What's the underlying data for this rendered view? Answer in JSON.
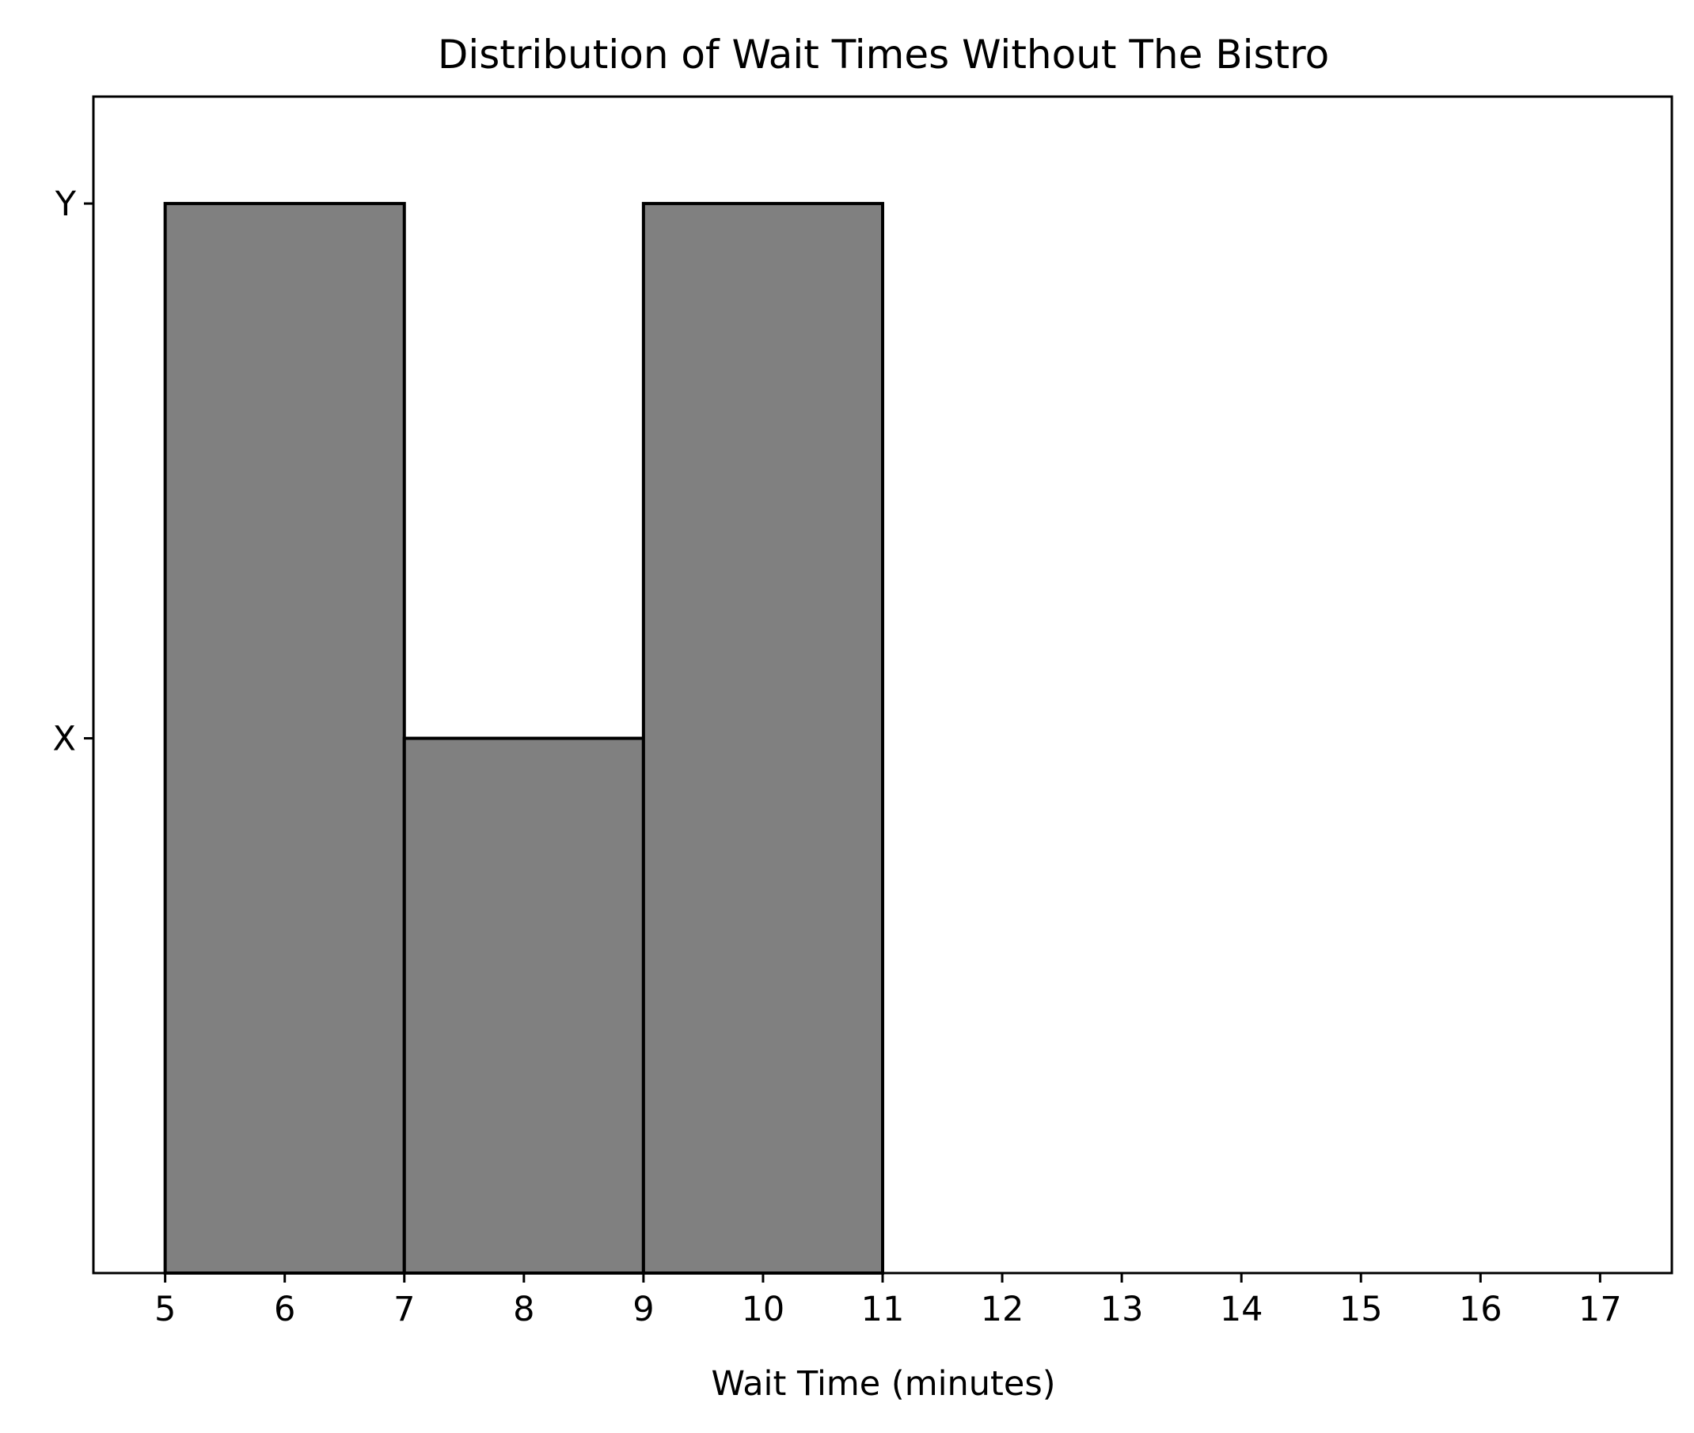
{
  "chart_data": {
    "type": "bar",
    "title": "Distribution of Wait Times Without The Bistro",
    "xlabel": "Wait Time (minutes)",
    "ylabel": "",
    "xlim": [
      4.4,
      17.6
    ],
    "ylim": [
      0,
      1.1
    ],
    "x_ticks": [
      "5",
      "6",
      "7",
      "8",
      "9",
      "10",
      "11",
      "12",
      "13",
      "14",
      "15",
      "16",
      "17"
    ],
    "y_ticks": [
      {
        "label": "X",
        "value": 0.5
      },
      {
        "label": "Y",
        "value": 1.0
      }
    ],
    "bins": [
      {
        "start": 5,
        "end": 7,
        "value": 1.0
      },
      {
        "start": 7,
        "end": 9,
        "value": 0.5
      },
      {
        "start": 9,
        "end": 11,
        "value": 1.0
      }
    ],
    "bar_color": "#808080",
    "edge_color": "#000000",
    "grid": false,
    "legend": "none"
  }
}
